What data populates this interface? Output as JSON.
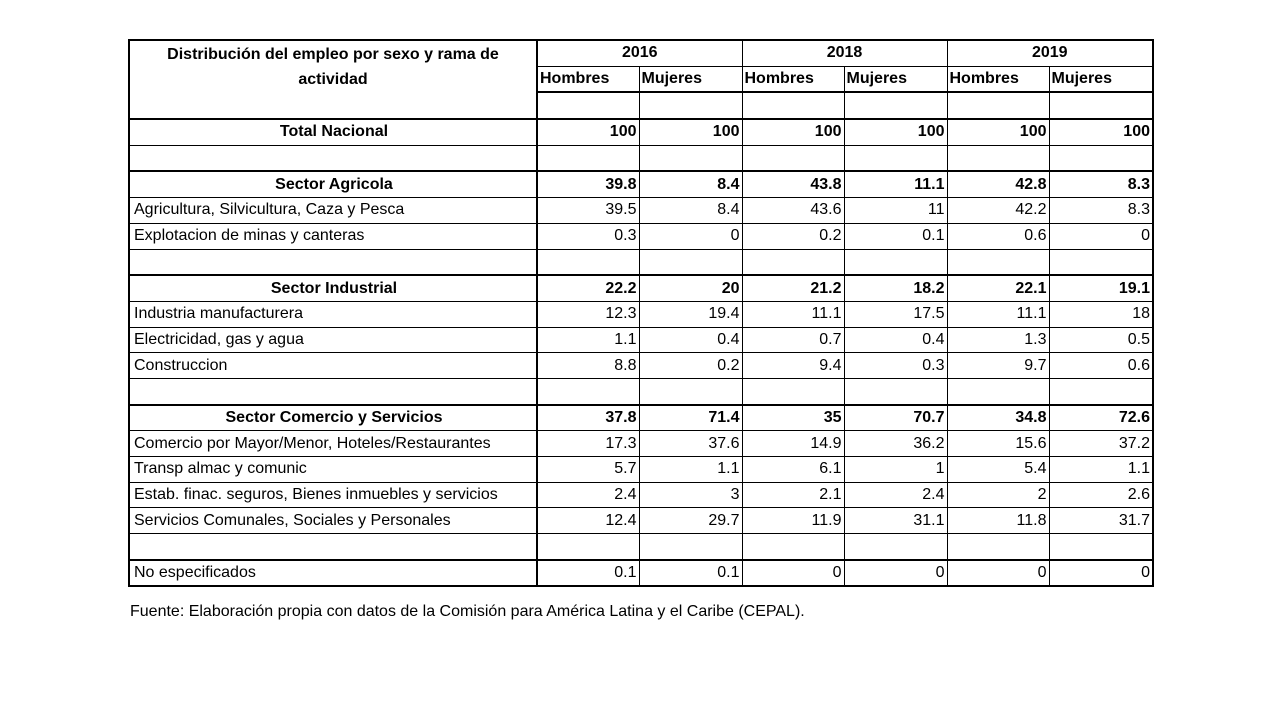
{
  "table": {
    "header_title": "Distribución del empleo por sexo y rama de actividad",
    "years": [
      "2016",
      "2018",
      "2019"
    ],
    "sexes": [
      "Hombres",
      "Mujeres"
    ],
    "rows": [
      {
        "type": "blank"
      },
      {
        "type": "data",
        "label": "Total Nacional",
        "bold": true,
        "values": [
          "100",
          "100",
          "100",
          "100",
          "100",
          "100"
        ]
      },
      {
        "type": "blank"
      },
      {
        "type": "data",
        "label": "Sector Agricola",
        "bold": true,
        "values": [
          "39.8",
          "8.4",
          "43.8",
          "11.1",
          "42.8",
          "8.3"
        ]
      },
      {
        "type": "data",
        "label": "Agricultura, Silvicultura, Caza y Pesca",
        "bold": false,
        "values": [
          "39.5",
          "8.4",
          "43.6",
          "11",
          "42.2",
          "8.3"
        ]
      },
      {
        "type": "data",
        "label": "Explotacion de minas y canteras",
        "bold": false,
        "values": [
          "0.3",
          "0",
          "0.2",
          "0.1",
          "0.6",
          "0"
        ]
      },
      {
        "type": "blank"
      },
      {
        "type": "data",
        "label": "Sector Industrial",
        "bold": true,
        "values": [
          "22.2",
          "20",
          "21.2",
          "18.2",
          "22.1",
          "19.1"
        ]
      },
      {
        "type": "data",
        "label": "Industria manufacturera",
        "bold": false,
        "values": [
          "12.3",
          "19.4",
          "11.1",
          "17.5",
          "11.1",
          "18"
        ]
      },
      {
        "type": "data",
        "label": "Electricidad, gas y agua",
        "bold": false,
        "values": [
          "1.1",
          "0.4",
          "0.7",
          "0.4",
          "1.3",
          "0.5"
        ]
      },
      {
        "type": "data",
        "label": "Construccion",
        "bold": false,
        "values": [
          "8.8",
          "0.2",
          "9.4",
          "0.3",
          "9.7",
          "0.6"
        ]
      },
      {
        "type": "blank"
      },
      {
        "type": "data",
        "label": "Sector Comercio y Servicios",
        "bold": true,
        "values": [
          "37.8",
          "71.4",
          "35",
          "70.7",
          "34.8",
          "72.6"
        ]
      },
      {
        "type": "data",
        "label": "Comercio por Mayor/Menor, Hoteles/Restaurantes",
        "bold": false,
        "values": [
          "17.3",
          "37.6",
          "14.9",
          "36.2",
          "15.6",
          "37.2"
        ]
      },
      {
        "type": "data",
        "label": "Transp almac y comunic",
        "bold": false,
        "values": [
          "5.7",
          "1.1",
          "6.1",
          "1",
          "5.4",
          "1.1"
        ]
      },
      {
        "type": "data",
        "label": "Estab. finac. seguros, Bienes inmuebles y servicios",
        "bold": false,
        "values": [
          "2.4",
          "3",
          "2.1",
          "2.4",
          "2",
          "2.6"
        ]
      },
      {
        "type": "data",
        "label": "Servicios Comunales, Sociales y Personales",
        "bold": false,
        "values": [
          "12.4",
          "29.7",
          "11.9",
          "31.1",
          "11.8",
          "31.7"
        ]
      },
      {
        "type": "blank"
      },
      {
        "type": "data",
        "label": "No especificados",
        "bold": false,
        "values": [
          "0.1",
          "0.1",
          "0",
          "0",
          "0",
          "0"
        ]
      }
    ]
  },
  "source": "Fuente: Elaboración propia con datos de la Comisión para América Latina y el Caribe (CEPAL)."
}
